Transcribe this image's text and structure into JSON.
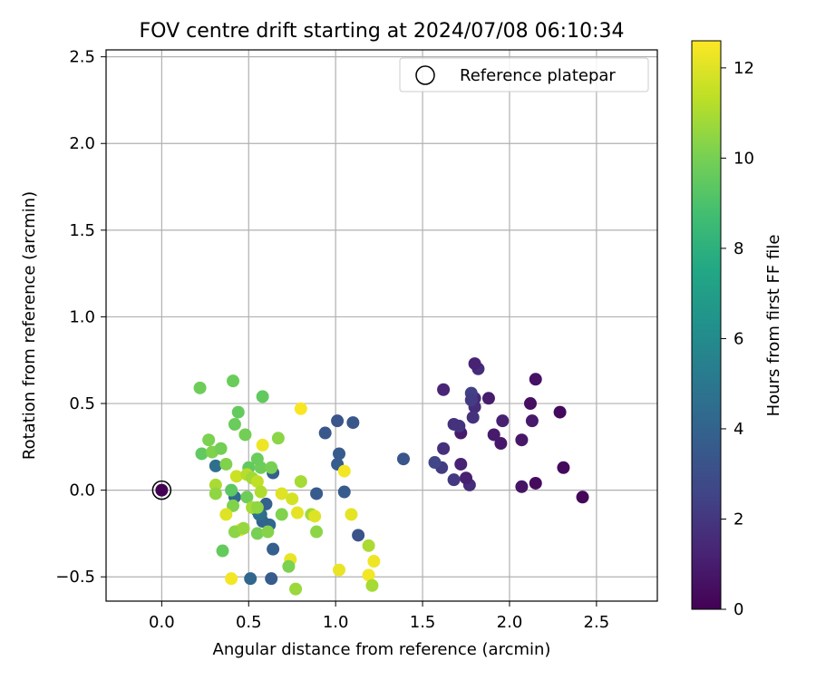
{
  "chart_data": {
    "type": "scatter",
    "title": "FOV centre drift starting at 2024/07/08 06:10:34",
    "xlabel": "Angular distance from reference (arcmin)",
    "ylabel": "Rotation from reference (arcmin)",
    "xlim": [
      -0.32,
      2.85
    ],
    "ylim": [
      -0.64,
      2.54
    ],
    "xticks": [
      0.0,
      0.5,
      1.0,
      1.5,
      2.0,
      2.5
    ],
    "xtick_labels": [
      "0.0",
      "0.5",
      "1.0",
      "1.5",
      "2.0",
      "2.5"
    ],
    "yticks": [
      -0.5,
      0.0,
      0.5,
      1.0,
      1.5,
      2.0,
      2.5
    ],
    "ytick_labels": [
      "−0.5",
      "0.0",
      "0.5",
      "1.0",
      "1.5",
      "2.0",
      "2.5"
    ],
    "grid": true,
    "legend": {
      "location": "upper right",
      "label": "Reference platepar"
    },
    "reference_point": {
      "x": 0.0,
      "y": 0.0,
      "hours": 0.0
    },
    "colorbar": {
      "label": "Hours from first FF file",
      "colormap": "viridis",
      "range": [
        0,
        12.6
      ],
      "ticks": [
        0,
        2,
        4,
        6,
        8,
        10,
        12
      ],
      "tick_labels": [
        "0",
        "2",
        "4",
        "6",
        "8",
        "10",
        "12"
      ]
    },
    "points": [
      {
        "x": 2.42,
        "y": -0.04,
        "h": 0.2
      },
      {
        "x": 2.31,
        "y": 0.13,
        "h": 0.3
      },
      {
        "x": 2.29,
        "y": 0.45,
        "h": 0.3
      },
      {
        "x": 2.15,
        "y": 0.64,
        "h": 0.6
      },
      {
        "x": 2.15,
        "y": 0.04,
        "h": 0.4
      },
      {
        "x": 2.13,
        "y": 0.4,
        "h": 0.9
      },
      {
        "x": 2.12,
        "y": 0.5,
        "h": 0.5
      },
      {
        "x": 2.07,
        "y": 0.02,
        "h": 0.7
      },
      {
        "x": 2.07,
        "y": 0.29,
        "h": 0.8
      },
      {
        "x": 1.96,
        "y": 0.4,
        "h": 1.1
      },
      {
        "x": 1.95,
        "y": 0.27,
        "h": 0.8
      },
      {
        "x": 1.91,
        "y": 0.32,
        "h": 0.9
      },
      {
        "x": 1.88,
        "y": 0.53,
        "h": 1.0
      },
      {
        "x": 1.82,
        "y": 0.7,
        "h": 1.6
      },
      {
        "x": 1.8,
        "y": 0.73,
        "h": 1.2
      },
      {
        "x": 1.8,
        "y": 0.53,
        "h": 1.5
      },
      {
        "x": 1.8,
        "y": 0.48,
        "h": 1.6
      },
      {
        "x": 1.78,
        "y": 0.56,
        "h": 2.4
      },
      {
        "x": 1.78,
        "y": 0.52,
        "h": 2.2
      },
      {
        "x": 1.79,
        "y": 0.42,
        "h": 1.8
      },
      {
        "x": 1.77,
        "y": 0.03,
        "h": 1.6
      },
      {
        "x": 1.75,
        "y": 0.07,
        "h": 1.1
      },
      {
        "x": 1.72,
        "y": 0.33,
        "h": 0.9
      },
      {
        "x": 1.72,
        "y": 0.15,
        "h": 1.2
      },
      {
        "x": 1.71,
        "y": 0.37,
        "h": 1.9
      },
      {
        "x": 1.68,
        "y": 0.38,
        "h": 1.8
      },
      {
        "x": 1.68,
        "y": 0.06,
        "h": 2.1
      },
      {
        "x": 1.62,
        "y": 0.58,
        "h": 1.3
      },
      {
        "x": 1.62,
        "y": 0.24,
        "h": 1.7
      },
      {
        "x": 1.61,
        "y": 0.13,
        "h": 2.2
      },
      {
        "x": 1.57,
        "y": 0.16,
        "h": 2.6
      },
      {
        "x": 1.39,
        "y": 0.18,
        "h": 3.3
      },
      {
        "x": 1.13,
        "y": -0.26,
        "h": 3.2
      },
      {
        "x": 1.1,
        "y": 0.39,
        "h": 3.4
      },
      {
        "x": 1.05,
        "y": -0.01,
        "h": 3.6
      },
      {
        "x": 1.01,
        "y": 0.4,
        "h": 3.3
      },
      {
        "x": 1.02,
        "y": 0.21,
        "h": 3.6
      },
      {
        "x": 1.01,
        "y": 0.15,
        "h": 3.7
      },
      {
        "x": 0.94,
        "y": 0.33,
        "h": 3.4
      },
      {
        "x": 0.89,
        "y": -0.02,
        "h": 3.6
      },
      {
        "x": 0.64,
        "y": 0.1,
        "h": 3.8
      },
      {
        "x": 0.64,
        "y": -0.34,
        "h": 3.8
      },
      {
        "x": 0.63,
        "y": -0.51,
        "h": 3.6
      },
      {
        "x": 0.62,
        "y": -0.2,
        "h": 4.2
      },
      {
        "x": 0.6,
        "y": -0.08,
        "h": 3.9
      },
      {
        "x": 0.58,
        "y": -0.18,
        "h": 4.1
      },
      {
        "x": 0.57,
        "y": -0.14,
        "h": 4.3
      },
      {
        "x": 0.56,
        "y": -0.14,
        "h": 4.6
      },
      {
        "x": 0.55,
        "y": -0.12,
        "h": 4.8
      },
      {
        "x": 0.51,
        "y": -0.51,
        "h": 4.2
      },
      {
        "x": 0.42,
        "y": -0.04,
        "h": 4.4
      },
      {
        "x": 0.31,
        "y": 0.14,
        "h": 4.6
      },
      {
        "x": 0.41,
        "y": 0.63,
        "h": 9.7
      },
      {
        "x": 0.22,
        "y": 0.59,
        "h": 9.8
      },
      {
        "x": 0.58,
        "y": 0.54,
        "h": 9.5
      },
      {
        "x": 0.44,
        "y": 0.45,
        "h": 9.6
      },
      {
        "x": 0.42,
        "y": 0.38,
        "h": 9.7
      },
      {
        "x": 0.48,
        "y": 0.32,
        "h": 9.9
      },
      {
        "x": 0.67,
        "y": 0.3,
        "h": 10.4
      },
      {
        "x": 0.27,
        "y": 0.29,
        "h": 10.1
      },
      {
        "x": 0.23,
        "y": 0.21,
        "h": 9.5
      },
      {
        "x": 0.29,
        "y": 0.22,
        "h": 10.2
      },
      {
        "x": 0.34,
        "y": 0.24,
        "h": 9.9
      },
      {
        "x": 0.37,
        "y": 0.15,
        "h": 10.2
      },
      {
        "x": 0.5,
        "y": 0.13,
        "h": 9.5
      },
      {
        "x": 0.57,
        "y": 0.13,
        "h": 9.8
      },
      {
        "x": 0.63,
        "y": 0.13,
        "h": 10.0
      },
      {
        "x": 0.55,
        "y": 0.18,
        "h": 9.7
      },
      {
        "x": 0.43,
        "y": 0.08,
        "h": 11.6
      },
      {
        "x": 0.49,
        "y": 0.09,
        "h": 11.2
      },
      {
        "x": 0.52,
        "y": 0.07,
        "h": 10.8
      },
      {
        "x": 0.55,
        "y": 0.05,
        "h": 11.4
      },
      {
        "x": 0.31,
        "y": 0.03,
        "h": 11.0
      },
      {
        "x": 0.31,
        "y": -0.02,
        "h": 10.5
      },
      {
        "x": 0.4,
        "y": 0.0,
        "h": 9.4
      },
      {
        "x": 0.49,
        "y": -0.04,
        "h": 9.8
      },
      {
        "x": 0.57,
        "y": -0.01,
        "h": 11.1
      },
      {
        "x": 0.41,
        "y": -0.09,
        "h": 10.2
      },
      {
        "x": 0.52,
        "y": -0.1,
        "h": 10.9
      },
      {
        "x": 0.55,
        "y": -0.1,
        "h": 10.5
      },
      {
        "x": 0.37,
        "y": -0.14,
        "h": 12.0
      },
      {
        "x": 0.45,
        "y": -0.23,
        "h": 12.1
      },
      {
        "x": 0.42,
        "y": -0.24,
        "h": 10.4
      },
      {
        "x": 0.47,
        "y": -0.22,
        "h": 10.6
      },
      {
        "x": 0.55,
        "y": -0.25,
        "h": 10.0
      },
      {
        "x": 0.61,
        "y": -0.24,
        "h": 10.3
      },
      {
        "x": 0.35,
        "y": -0.35,
        "h": 9.6
      },
      {
        "x": 0.4,
        "y": -0.51,
        "h": 12.4
      },
      {
        "x": 0.58,
        "y": 0.26,
        "h": 12.3
      },
      {
        "x": 0.69,
        "y": -0.02,
        "h": 12.0
      },
      {
        "x": 0.75,
        "y": -0.05,
        "h": 11.8
      },
      {
        "x": 0.69,
        "y": -0.14,
        "h": 10.2
      },
      {
        "x": 0.78,
        "y": -0.13,
        "h": 12.1
      },
      {
        "x": 0.86,
        "y": -0.14,
        "h": 10.8
      },
      {
        "x": 0.88,
        "y": -0.15,
        "h": 12.0
      },
      {
        "x": 0.89,
        "y": -0.24,
        "h": 10.4
      },
      {
        "x": 0.8,
        "y": 0.05,
        "h": 10.9
      },
      {
        "x": 0.8,
        "y": 0.47,
        "h": 12.5
      },
      {
        "x": 0.74,
        "y": -0.4,
        "h": 12.2
      },
      {
        "x": 0.73,
        "y": -0.44,
        "h": 10.1
      },
      {
        "x": 0.77,
        "y": -0.57,
        "h": 10.7
      },
      {
        "x": 1.05,
        "y": 0.11,
        "h": 12.4
      },
      {
        "x": 1.09,
        "y": -0.14,
        "h": 12.1
      },
      {
        "x": 1.02,
        "y": -0.46,
        "h": 12.2
      },
      {
        "x": 1.19,
        "y": -0.32,
        "h": 11.0
      },
      {
        "x": 1.22,
        "y": -0.41,
        "h": 12.3
      },
      {
        "x": 1.19,
        "y": -0.49,
        "h": 12.4
      },
      {
        "x": 1.21,
        "y": -0.55,
        "h": 10.9
      }
    ]
  }
}
